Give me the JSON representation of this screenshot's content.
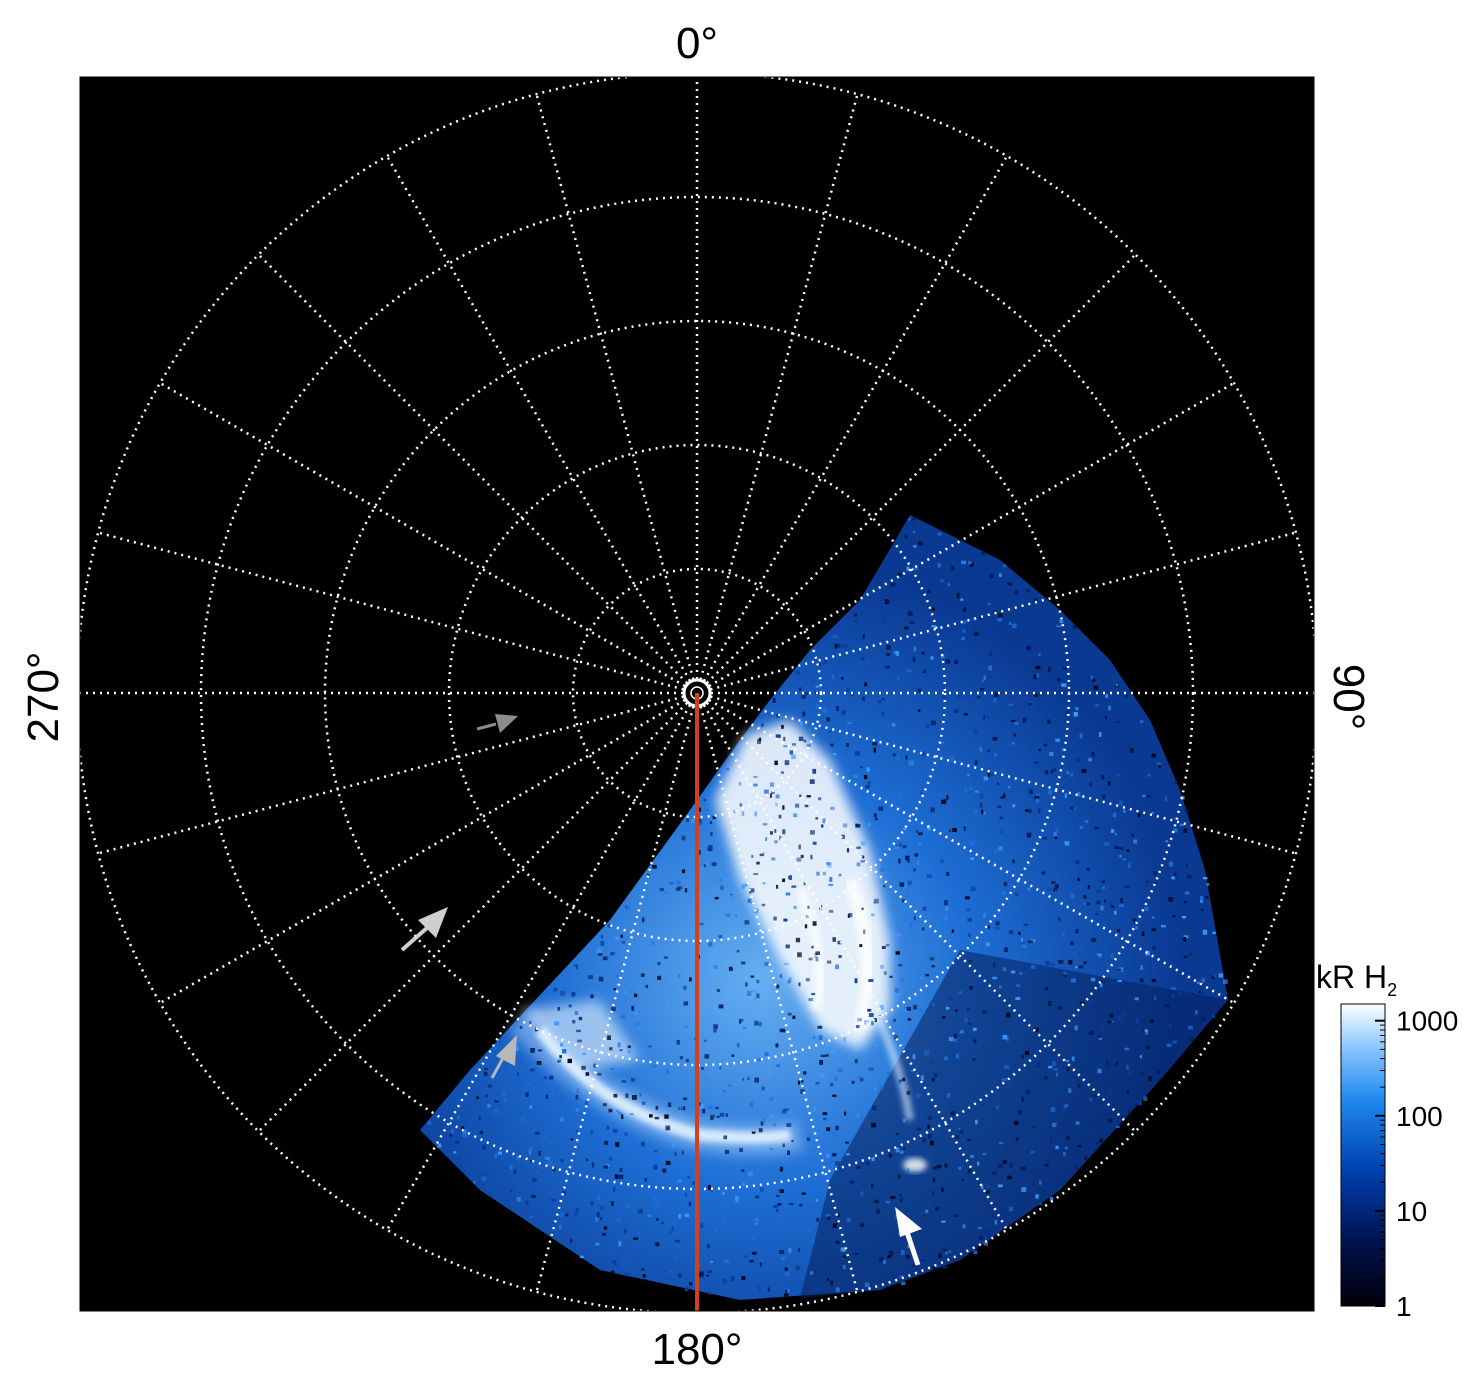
{
  "axis_labels": {
    "top": "0°",
    "right": "90°",
    "bottom": "180°",
    "left": "270°"
  },
  "colorbar": {
    "title_main": "kR H",
    "title_sub": "2",
    "ticks": [
      {
        "value": 1000,
        "label": "1000"
      },
      {
        "value": 100,
        "label": "100"
      },
      {
        "value": 10,
        "label": "10"
      },
      {
        "value": 1,
        "label": "1"
      }
    ],
    "range": [
      1,
      1500
    ],
    "scale": "log"
  },
  "grid": {
    "meridian_step_deg": 15,
    "latitude_rings": 5,
    "style": "dotted",
    "color": "#ffffff"
  },
  "colors": {
    "background": "#000000",
    "reference_line": "#d2411e",
    "arrow_white": "#ffffff",
    "arrow_gray": "#9a9a9a"
  },
  "colormap": [
    "#000008",
    "#00104a",
    "#0040b0",
    "#1e88f0",
    "#8cc8ff",
    "#ffffff"
  ]
}
